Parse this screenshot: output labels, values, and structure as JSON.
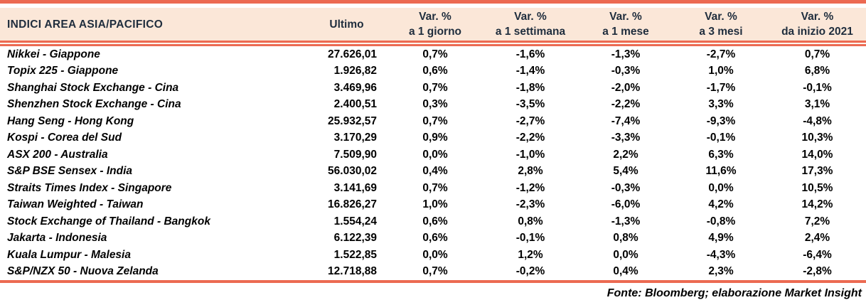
{
  "colors": {
    "accent": "#EC6A52",
    "header_bg": "#FBE7D8",
    "header_text": "#1F2D3D",
    "body_text": "#000000"
  },
  "table": {
    "title": "INDICI AREA ASIA/PACIFICO",
    "columns": {
      "ultimo": "Ultimo",
      "var": [
        {
          "top": "Var. %",
          "bottom": "a 1 giorno"
        },
        {
          "top": "Var. %",
          "bottom": "a 1 settimana"
        },
        {
          "top": "Var. %",
          "bottom": "a 1 mese"
        },
        {
          "top": "Var. %",
          "bottom": "a 3 mesi"
        },
        {
          "top": "Var. %",
          "bottom": "da inizio 2021"
        }
      ]
    },
    "rows": [
      {
        "name": "Nikkei - Giappone",
        "ultimo": "27.626,01",
        "d1": "0,7%",
        "w1": "-1,6%",
        "m1": "-1,3%",
        "m3": "-2,7%",
        "ytd": "0,7%"
      },
      {
        "name": "Topix 225 - Giappone",
        "ultimo": "1.926,82",
        "d1": "0,6%",
        "w1": "-1,4%",
        "m1": "-0,3%",
        "m3": "1,0%",
        "ytd": "6,8%"
      },
      {
        "name": "Shanghai Stock Exchange - Cina",
        "ultimo": "3.469,96",
        "d1": "0,7%",
        "w1": "-1,8%",
        "m1": "-2,0%",
        "m3": "-1,7%",
        "ytd": "-0,1%"
      },
      {
        "name": "Shenzhen Stock Exchange - Cina",
        "ultimo": "2.400,51",
        "d1": "0,3%",
        "w1": "-3,5%",
        "m1": "-2,2%",
        "m3": "3,3%",
        "ytd": "3,1%"
      },
      {
        "name": "Hang Seng - Hong Kong",
        "ultimo": "25.932,57",
        "d1": "0,7%",
        "w1": "-2,7%",
        "m1": "-7,4%",
        "m3": "-9,3%",
        "ytd": "-4,8%"
      },
      {
        "name": "Kospi - Corea del Sud",
        "ultimo": "3.170,29",
        "d1": "0,9%",
        "w1": "-2,2%",
        "m1": "-3,3%",
        "m3": "-0,1%",
        "ytd": "10,3%"
      },
      {
        "name": "ASX 200 - Australia",
        "ultimo": "7.509,90",
        "d1": "0,0%",
        "w1": "-1,0%",
        "m1": "2,2%",
        "m3": "6,3%",
        "ytd": "14,0%"
      },
      {
        "name": "S&P BSE Sensex - India",
        "ultimo": "56.030,02",
        "d1": "0,4%",
        "w1": "2,8%",
        "m1": "5,4%",
        "m3": "11,6%",
        "ytd": "17,3%"
      },
      {
        "name": "Straits Times Index - Singapore",
        "ultimo": "3.141,69",
        "d1": "0,7%",
        "w1": "-1,2%",
        "m1": "-0,3%",
        "m3": "0,0%",
        "ytd": "10,5%"
      },
      {
        "name": "Taiwan Weighted - Taiwan",
        "ultimo": "16.826,27",
        "d1": "1,0%",
        "w1": "-2,3%",
        "m1": "-6,0%",
        "m3": "4,2%",
        "ytd": "14,2%"
      },
      {
        "name": "Stock Exchange of Thailand - Bangkok",
        "ultimo": "1.554,24",
        "d1": "0,6%",
        "w1": "0,8%",
        "m1": "-1,3%",
        "m3": "-0,8%",
        "ytd": "7,2%"
      },
      {
        "name": "Jakarta - Indonesia",
        "ultimo": "6.122,39",
        "d1": "0,6%",
        "w1": "-0,1%",
        "m1": "0,8%",
        "m3": "4,9%",
        "ytd": "2,4%"
      },
      {
        "name": "Kuala Lumpur - Malesia",
        "ultimo": "1.522,85",
        "d1": "0,0%",
        "w1": "1,2%",
        "m1": "0,0%",
        "m3": "-4,3%",
        "ytd": "-6,4%"
      },
      {
        "name": "S&P/NZX 50 - Nuova Zelanda",
        "ultimo": "12.718,88",
        "d1": "0,7%",
        "w1": "-0,2%",
        "m1": "0,4%",
        "m3": "2,3%",
        "ytd": "-2,8%"
      }
    ],
    "footer": "Fonte: Bloomberg; elaborazione Market Insight"
  },
  "chart_data": {
    "type": "table",
    "title": "INDICI AREA ASIA/PACIFICO",
    "columns": [
      "INDICI AREA ASIA/PACIFICO",
      "Ultimo",
      "Var. % a 1 giorno",
      "Var. % a 1 settimana",
      "Var. % a 1 mese",
      "Var. % a 3 mesi",
      "Var. % da inizio 2021"
    ],
    "rows": [
      [
        "Nikkei - Giappone",
        27626.01,
        0.7,
        -1.6,
        -1.3,
        -2.7,
        0.7
      ],
      [
        "Topix 225 - Giappone",
        1926.82,
        0.6,
        -1.4,
        -0.3,
        1.0,
        6.8
      ],
      [
        "Shanghai Stock Exchange - Cina",
        3469.96,
        0.7,
        -1.8,
        -2.0,
        -1.7,
        -0.1
      ],
      [
        "Shenzhen Stock Exchange - Cina",
        2400.51,
        0.3,
        -3.5,
        -2.2,
        3.3,
        3.1
      ],
      [
        "Hang Seng - Hong Kong",
        25932.57,
        0.7,
        -2.7,
        -7.4,
        -9.3,
        -4.8
      ],
      [
        "Kospi - Corea del Sud",
        3170.29,
        0.9,
        -2.2,
        -3.3,
        -0.1,
        10.3
      ],
      [
        "ASX 200 - Australia",
        7509.9,
        0.0,
        -1.0,
        2.2,
        6.3,
        14.0
      ],
      [
        "S&P BSE Sensex - India",
        56030.02,
        0.4,
        2.8,
        5.4,
        11.6,
        17.3
      ],
      [
        "Straits Times Index - Singapore",
        3141.69,
        0.7,
        -1.2,
        -0.3,
        0.0,
        10.5
      ],
      [
        "Taiwan Weighted - Taiwan",
        16826.27,
        1.0,
        -2.3,
        -6.0,
        4.2,
        14.2
      ],
      [
        "Stock Exchange of Thailand - Bangkok",
        1554.24,
        0.6,
        0.8,
        -1.3,
        -0.8,
        7.2
      ],
      [
        "Jakarta - Indonesia",
        6122.39,
        0.6,
        -0.1,
        0.8,
        4.9,
        2.4
      ],
      [
        "Kuala Lumpur - Malesia",
        1522.85,
        0.0,
        1.2,
        0.0,
        -4.3,
        -6.4
      ],
      [
        "S&P/NZX 50 - Nuova Zelanda",
        12718.88,
        0.7,
        -0.2,
        0.4,
        2.3,
        -2.8
      ]
    ],
    "annotations": [
      "Fonte: Bloomberg; elaborazione Market Insight"
    ],
    "value_units": "percent change except Ultimo (index level, Italian number format)"
  }
}
